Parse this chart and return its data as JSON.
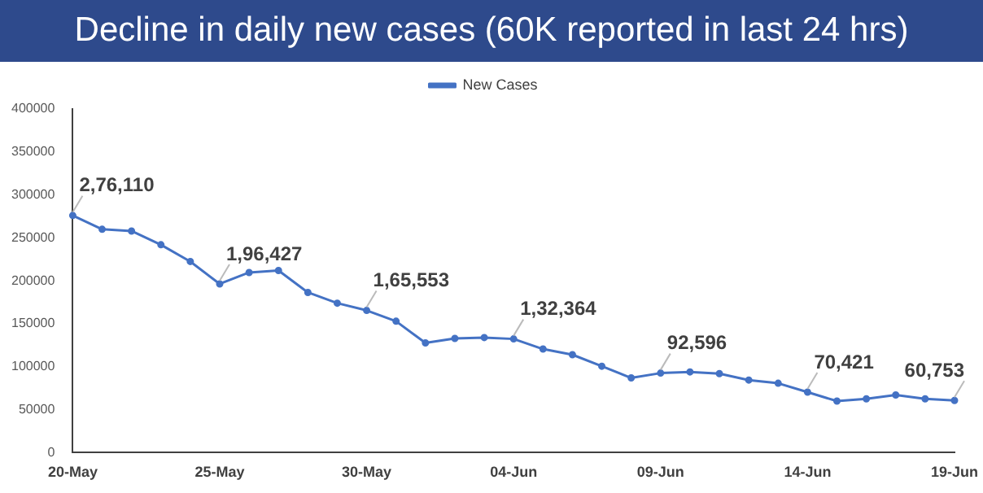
{
  "chart_data": {
    "type": "line",
    "title": "Decline in daily new cases (60K reported in last 24 hrs)",
    "categories": [
      "20-May",
      null,
      null,
      null,
      null,
      "25-May",
      null,
      null,
      null,
      null,
      "30-May",
      null,
      null,
      null,
      null,
      "04-Jun",
      null,
      null,
      null,
      null,
      "09-Jun",
      null,
      null,
      null,
      null,
      "14-Jun",
      null,
      null,
      null,
      null,
      "19-Jun"
    ],
    "series": [
      {
        "name": "New Cases",
        "color": "#4472c4",
        "values": [
          276110,
          260000,
          258000,
          242000,
          222500,
          196427,
          209700,
          212000,
          186500,
          174000,
          165553,
          153000,
          127700,
          133000,
          134000,
          132364,
          120600,
          114000,
          100600,
          87000,
          92596,
          94000,
          92000,
          84500,
          80800,
          70421,
          60000,
          62600,
          67100,
          62600,
          60753
        ],
        "value_labels": [
          "2,76,110",
          null,
          null,
          null,
          null,
          "1,96,427",
          null,
          null,
          null,
          null,
          "1,65,553",
          null,
          null,
          null,
          null,
          "1,32,364",
          null,
          null,
          null,
          null,
          "92,596",
          null,
          null,
          null,
          null,
          "70,421",
          null,
          null,
          null,
          null,
          "60,753"
        ]
      }
    ],
    "ylim": [
      0,
      400000
    ],
    "yticks": [
      0,
      50000,
      100000,
      150000,
      200000,
      250000,
      300000,
      350000,
      400000
    ],
    "grid": false,
    "legend": "top",
    "marker": "circle",
    "line_style": "solid"
  }
}
